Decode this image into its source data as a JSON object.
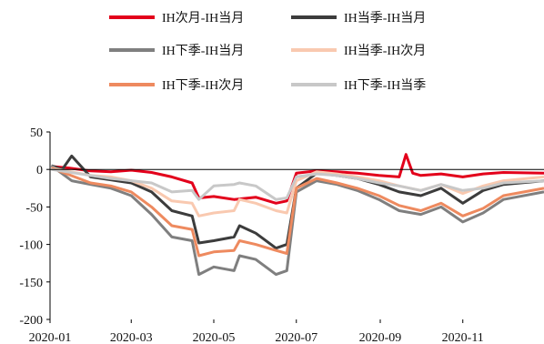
{
  "chart_data": {
    "type": "line",
    "title": "",
    "xlabel": "",
    "ylabel": "",
    "ylim": [
      -200,
      50
    ],
    "yticks": [
      50,
      0,
      -50,
      -100,
      -150,
      -200
    ],
    "xlim": [
      "2020-01-01",
      "2020-12-31"
    ],
    "xticks": [
      "2020-01",
      "2020-03",
      "2020-05",
      "2020-07",
      "2020-09",
      "2020-11"
    ],
    "grid": false,
    "legend_position": "top",
    "series": [
      {
        "name": "IH次月-IH当月",
        "color": "#e3001b",
        "points": [
          [
            "2020-01-02",
            4
          ],
          [
            "2020-01-15",
            2
          ],
          [
            "2020-01-31",
            -2
          ],
          [
            "2020-02-15",
            -3
          ],
          [
            "2020-03-01",
            -1
          ],
          [
            "2020-03-16",
            -4
          ],
          [
            "2020-03-31",
            -10
          ],
          [
            "2020-04-15",
            -18
          ],
          [
            "2020-04-20",
            -38
          ],
          [
            "2020-05-01",
            -36
          ],
          [
            "2020-05-16",
            -40
          ],
          [
            "2020-06-01",
            -37
          ],
          [
            "2020-06-16",
            -45
          ],
          [
            "2020-06-24",
            -42
          ],
          [
            "2020-07-01",
            -5
          ],
          [
            "2020-07-16",
            -2
          ],
          [
            "2020-07-31",
            -3
          ],
          [
            "2020-08-15",
            -5
          ],
          [
            "2020-08-31",
            -8
          ],
          [
            "2020-09-15",
            -10
          ],
          [
            "2020-09-20",
            20
          ],
          [
            "2020-09-25",
            -5
          ],
          [
            "2020-10-01",
            -8
          ],
          [
            "2020-10-16",
            -6
          ],
          [
            "2020-11-01",
            -10
          ],
          [
            "2020-11-16",
            -6
          ],
          [
            "2020-12-01",
            -4
          ],
          [
            "2020-12-31",
            -5
          ]
        ]
      },
      {
        "name": "IH当季-IH当月",
        "color": "#3c3c3c",
        "points": [
          [
            "2020-01-02",
            5
          ],
          [
            "2020-01-10",
            0
          ],
          [
            "2020-01-17",
            18
          ],
          [
            "2020-01-31",
            -10
          ],
          [
            "2020-02-15",
            -14
          ],
          [
            "2020-03-01",
            -18
          ],
          [
            "2020-03-16",
            -30
          ],
          [
            "2020-03-31",
            -55
          ],
          [
            "2020-04-15",
            -62
          ],
          [
            "2020-04-20",
            -98
          ],
          [
            "2020-05-01",
            -95
          ],
          [
            "2020-05-16",
            -90
          ],
          [
            "2020-05-20",
            -75
          ],
          [
            "2020-06-01",
            -85
          ],
          [
            "2020-06-16",
            -105
          ],
          [
            "2020-06-24",
            -100
          ],
          [
            "2020-07-01",
            -25
          ],
          [
            "2020-07-16",
            -5
          ],
          [
            "2020-07-31",
            -8
          ],
          [
            "2020-08-15",
            -12
          ],
          [
            "2020-08-31",
            -20
          ],
          [
            "2020-09-15",
            -30
          ],
          [
            "2020-10-01",
            -35
          ],
          [
            "2020-10-16",
            -25
          ],
          [
            "2020-11-01",
            -45
          ],
          [
            "2020-11-16",
            -28
          ],
          [
            "2020-12-01",
            -20
          ],
          [
            "2020-12-31",
            -15
          ]
        ]
      },
      {
        "name": "IH下季-IH当月",
        "color": "#7f7f7f",
        "points": [
          [
            "2020-01-02",
            5
          ],
          [
            "2020-01-17",
            -15
          ],
          [
            "2020-01-31",
            -20
          ],
          [
            "2020-02-15",
            -25
          ],
          [
            "2020-03-01",
            -35
          ],
          [
            "2020-03-16",
            -60
          ],
          [
            "2020-03-31",
            -90
          ],
          [
            "2020-04-15",
            -95
          ],
          [
            "2020-04-20",
            -140
          ],
          [
            "2020-05-01",
            -130
          ],
          [
            "2020-05-16",
            -135
          ],
          [
            "2020-05-20",
            -115
          ],
          [
            "2020-06-01",
            -120
          ],
          [
            "2020-06-16",
            -140
          ],
          [
            "2020-06-24",
            -135
          ],
          [
            "2020-07-01",
            -30
          ],
          [
            "2020-07-16",
            -15
          ],
          [
            "2020-07-31",
            -20
          ],
          [
            "2020-08-15",
            -28
          ],
          [
            "2020-08-31",
            -40
          ],
          [
            "2020-09-15",
            -55
          ],
          [
            "2020-10-01",
            -60
          ],
          [
            "2020-10-16",
            -50
          ],
          [
            "2020-11-01",
            -70
          ],
          [
            "2020-11-16",
            -58
          ],
          [
            "2020-12-01",
            -40
          ],
          [
            "2020-12-31",
            -30
          ]
        ]
      },
      {
        "name": "IH当季-IH次月",
        "color": "#f9c9b0",
        "points": [
          [
            "2020-01-02",
            2
          ],
          [
            "2020-01-31",
            -8
          ],
          [
            "2020-02-15",
            -10
          ],
          [
            "2020-03-01",
            -15
          ],
          [
            "2020-03-16",
            -25
          ],
          [
            "2020-03-31",
            -42
          ],
          [
            "2020-04-15",
            -45
          ],
          [
            "2020-04-20",
            -62
          ],
          [
            "2020-05-01",
            -58
          ],
          [
            "2020-05-16",
            -55
          ],
          [
            "2020-05-20",
            -40
          ],
          [
            "2020-06-01",
            -45
          ],
          [
            "2020-06-16",
            -55
          ],
          [
            "2020-06-24",
            -58
          ],
          [
            "2020-07-01",
            -15
          ],
          [
            "2020-07-16",
            -3
          ],
          [
            "2020-07-31",
            -6
          ],
          [
            "2020-08-15",
            -10
          ],
          [
            "2020-08-31",
            -15
          ],
          [
            "2020-09-15",
            -22
          ],
          [
            "2020-10-01",
            -28
          ],
          [
            "2020-10-16",
            -20
          ],
          [
            "2020-11-01",
            -32
          ],
          [
            "2020-11-16",
            -22
          ],
          [
            "2020-12-01",
            -15
          ],
          [
            "2020-12-31",
            -10
          ]
        ]
      },
      {
        "name": "IH下季-IH次月",
        "color": "#ee8a5f",
        "points": [
          [
            "2020-01-02",
            2
          ],
          [
            "2020-01-31",
            -18
          ],
          [
            "2020-02-15",
            -22
          ],
          [
            "2020-03-01",
            -30
          ],
          [
            "2020-03-16",
            -50
          ],
          [
            "2020-03-31",
            -75
          ],
          [
            "2020-04-15",
            -80
          ],
          [
            "2020-04-20",
            -115
          ],
          [
            "2020-05-01",
            -110
          ],
          [
            "2020-05-16",
            -108
          ],
          [
            "2020-05-20",
            -95
          ],
          [
            "2020-06-01",
            -100
          ],
          [
            "2020-06-16",
            -108
          ],
          [
            "2020-06-24",
            -112
          ],
          [
            "2020-07-01",
            -25
          ],
          [
            "2020-07-16",
            -12
          ],
          [
            "2020-07-31",
            -18
          ],
          [
            "2020-08-15",
            -25
          ],
          [
            "2020-08-31",
            -35
          ],
          [
            "2020-09-15",
            -48
          ],
          [
            "2020-10-01",
            -55
          ],
          [
            "2020-10-16",
            -45
          ],
          [
            "2020-11-01",
            -62
          ],
          [
            "2020-11-16",
            -52
          ],
          [
            "2020-12-01",
            -35
          ],
          [
            "2020-12-31",
            -25
          ]
        ]
      },
      {
        "name": "IH下季-IH当季",
        "color": "#c8c8c8",
        "points": [
          [
            "2020-01-02",
            0
          ],
          [
            "2020-01-31",
            -8
          ],
          [
            "2020-02-15",
            -12
          ],
          [
            "2020-03-01",
            -15
          ],
          [
            "2020-03-16",
            -18
          ],
          [
            "2020-03-31",
            -30
          ],
          [
            "2020-04-15",
            -28
          ],
          [
            "2020-04-20",
            -40
          ],
          [
            "2020-05-01",
            -22
          ],
          [
            "2020-05-16",
            -20
          ],
          [
            "2020-05-20",
            -18
          ],
          [
            "2020-06-01",
            -22
          ],
          [
            "2020-06-16",
            -40
          ],
          [
            "2020-06-24",
            -38
          ],
          [
            "2020-07-01",
            -10
          ],
          [
            "2020-07-16",
            -6
          ],
          [
            "2020-07-31",
            -8
          ],
          [
            "2020-08-15",
            -12
          ],
          [
            "2020-08-31",
            -18
          ],
          [
            "2020-09-15",
            -22
          ],
          [
            "2020-10-01",
            -28
          ],
          [
            "2020-10-16",
            -20
          ],
          [
            "2020-11-01",
            -28
          ],
          [
            "2020-11-16",
            -25
          ],
          [
            "2020-12-01",
            -18
          ],
          [
            "2020-12-31",
            -15
          ]
        ]
      }
    ]
  }
}
